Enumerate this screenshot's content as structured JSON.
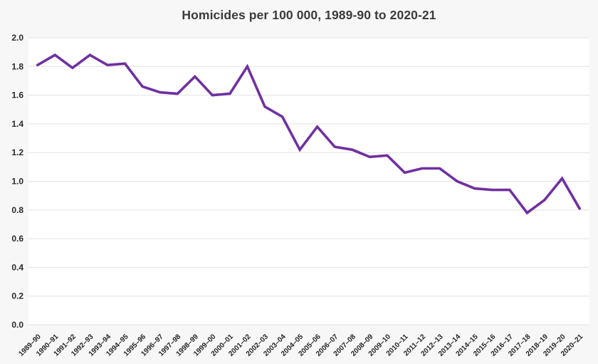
{
  "chart_data": {
    "type": "line",
    "title": "Homicides per 100 000, 1989-90 to 2020-21",
    "xlabel": "",
    "ylabel": "",
    "legend": "none",
    "grid": "horizontal",
    "ylim": [
      0.0,
      2.0
    ],
    "ytick_step": 0.2,
    "y_tick_labels": [
      "0.0",
      "0.2",
      "0.4",
      "0.6",
      "0.8",
      "1.0",
      "1.2",
      "1.4",
      "1.6",
      "1.8",
      "2.0"
    ],
    "series_name": "Homicides per 100 000",
    "categories": [
      "1989–90",
      "1990–91",
      "1991–92",
      "1992–93",
      "1993–94",
      "1994–95",
      "1995–96",
      "1996–97",
      "1997–98",
      "1998–99",
      "1999–00",
      "2000–01",
      "2001–02",
      "2002–03",
      "2003–04",
      "2004–05",
      "2005–06",
      "2006–07",
      "2007–08",
      "2008–09",
      "2009–10",
      "2010–11",
      "2011–12",
      "2012–13",
      "2013–14",
      "2014–15",
      "2015–16",
      "2016–17",
      "2017–18",
      "2018–19",
      "2019–20",
      "2020–21"
    ],
    "values": [
      1.81,
      1.88,
      1.79,
      1.88,
      1.81,
      1.82,
      1.66,
      1.62,
      1.61,
      1.73,
      1.6,
      1.61,
      1.8,
      1.52,
      1.45,
      1.22,
      1.38,
      1.24,
      1.22,
      1.17,
      1.18,
      1.06,
      1.09,
      1.09,
      1.0,
      0.95,
      0.94,
      0.94,
      0.78,
      0.87,
      1.02,
      0.81
    ]
  },
  "colors": {
    "line": "#7030A0",
    "page_background": "#F7F7F7",
    "plot_background": "#FFFFFF",
    "gridline": "#E2E2E2",
    "title_text": "#3B3B3B",
    "axis_text": "#262626"
  }
}
